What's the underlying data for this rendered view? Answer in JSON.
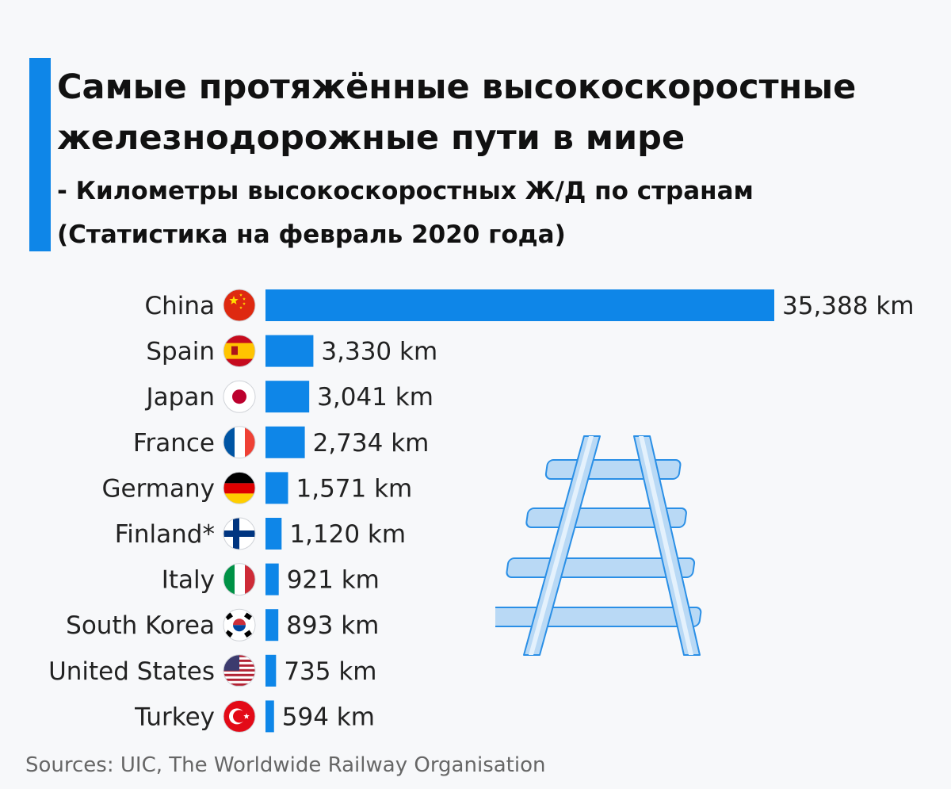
{
  "header": {
    "title_line1": "Самые протяжённые высокоскоростные",
    "title_line2": "железнодорожные пути в мире",
    "subtitle_line1": "- Километры высокоскоростных Ж/Д по странам",
    "subtitle_line2": "(Статистика на февраль 2020 года)"
  },
  "chart_data": {
    "type": "bar",
    "orientation": "horizontal",
    "categories": [
      "China",
      "Spain",
      "Japan",
      "France",
      "Germany",
      "Finland*",
      "Italy",
      "South Korea",
      "United States",
      "Turkey"
    ],
    "values": [
      35388,
      3330,
      3041,
      2734,
      1571,
      1120,
      921,
      893,
      735,
      594
    ],
    "value_labels": [
      "35,388 km",
      "3,330 km",
      "3,041 km",
      "2,734 km",
      "1,571 km",
      "1,120 km",
      "921 km",
      "893 km",
      "735 km",
      "594 km"
    ],
    "flags": [
      "china-flag-icon",
      "spain-flag-icon",
      "japan-flag-icon",
      "france-flag-icon",
      "germany-flag-icon",
      "finland-flag-icon",
      "italy-flag-icon",
      "south-korea-flag-icon",
      "united-states-flag-icon",
      "turkey-flag-icon"
    ],
    "bar_color": "#0e86e8",
    "xlim": [
      0,
      35388
    ],
    "grid": false
  },
  "footer": {
    "source": "Sources: UIC, The Worldwide Railway Organisation"
  },
  "decoration": {
    "icon": "railway-tracks-icon",
    "icon_fill": "#b9d9f5",
    "icon_stroke": "#2a8fe6"
  }
}
